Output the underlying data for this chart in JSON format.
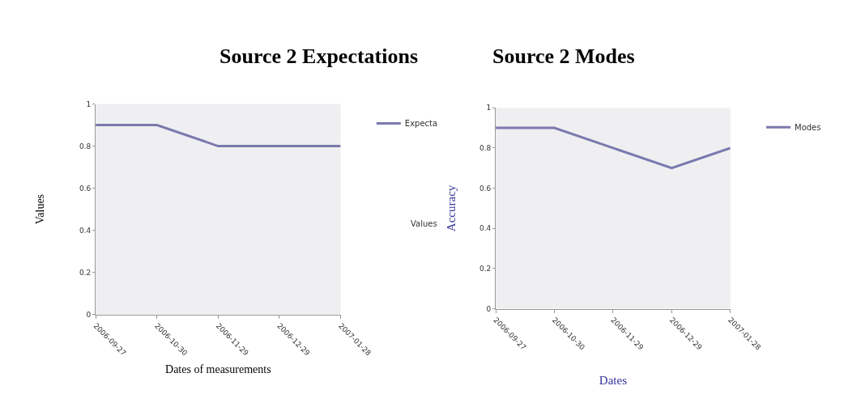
{
  "chart_data": [
    {
      "type": "line",
      "title": "Source 2 Expectations",
      "xlabel": "Dates of measurements",
      "ylabel": "Values",
      "categories": [
        "2006-09-27",
        "2006-10-30",
        "2006-11-29",
        "2006-12-29",
        "2007-01-28"
      ],
      "series": [
        {
          "name": "Expecta",
          "color": "#7b79ad",
          "values": [
            0.9,
            0.9,
            0.8,
            0.8,
            0.8
          ]
        }
      ],
      "ylim": [
        0,
        1
      ],
      "yticks": [
        0,
        0.2,
        0.4,
        0.6,
        0.8,
        1
      ],
      "grid": false,
      "legend": "top right",
      "marker": "none",
      "line_style": "solid"
    },
    {
      "type": "line",
      "title": "Source 2 Modes",
      "xlabel": "Dates",
      "ylabel": "Accuracy",
      "annotations": [
        "Values"
      ],
      "categories": [
        "2006-09-27",
        "2006-10-30",
        "2006-11-29",
        "2006-12-29",
        "2007-01-28"
      ],
      "series": [
        {
          "name": "Modes",
          "color": "#7b79ad",
          "values": [
            0.9,
            0.9,
            0.8,
            0.7,
            0.8
          ]
        }
      ],
      "ylim": [
        0,
        1
      ],
      "yticks": [
        0,
        0.2,
        0.4,
        0.6,
        0.8,
        1
      ],
      "grid": false,
      "legend": "top right",
      "marker": "none",
      "line_style": "solid"
    }
  ]
}
